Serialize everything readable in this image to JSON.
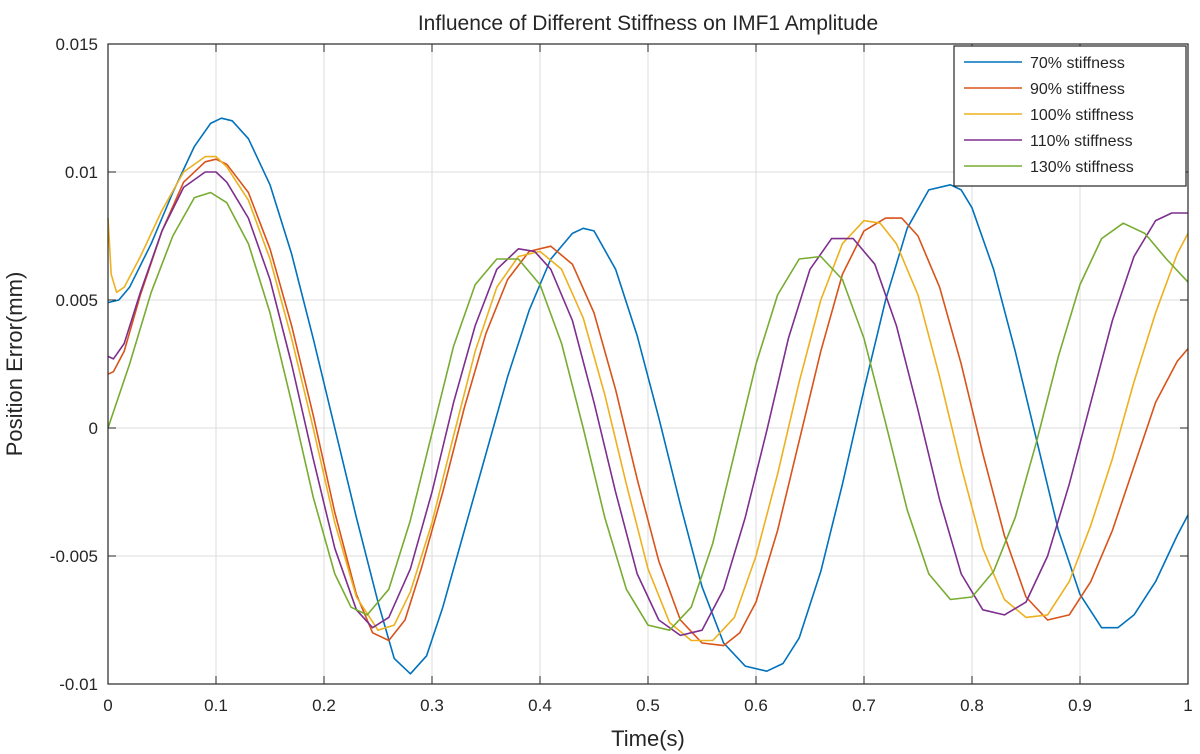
{
  "chart_data": {
    "type": "line",
    "title": "Influence of Different Stiffness on IMF1 Amplitude",
    "xlabel": "Time(s)",
    "ylabel": "Position Error(mm)",
    "xlim": [
      0,
      1
    ],
    "ylim": [
      -0.01,
      0.015
    ],
    "x_ticks": [
      0,
      0.1,
      0.2,
      0.3,
      0.4,
      0.5,
      0.6,
      0.7,
      0.8,
      0.9,
      1
    ],
    "x_tick_labels": [
      "0",
      "0.1",
      "0.2",
      "0.3",
      "0.4",
      "0.5",
      "0.6",
      "0.7",
      "0.8",
      "0.9",
      "1"
    ],
    "y_ticks": [
      -0.01,
      -0.005,
      0,
      0.005,
      0.01,
      0.015
    ],
    "y_tick_labels": [
      "-0.01",
      "-0.005",
      "0",
      "0.005",
      "0.01",
      "0.015"
    ],
    "grid": true,
    "legend_position": "top-right",
    "series": [
      {
        "name": "70% stiffness",
        "color": "#0072BD",
        "points": [
          [
            0,
            0.0049
          ],
          [
            0.01,
            0.005
          ],
          [
            0.02,
            0.0055
          ],
          [
            0.04,
            0.0072
          ],
          [
            0.06,
            0.0092
          ],
          [
            0.08,
            0.011
          ],
          [
            0.095,
            0.0119
          ],
          [
            0.105,
            0.0121
          ],
          [
            0.115,
            0.012
          ],
          [
            0.13,
            0.0113
          ],
          [
            0.15,
            0.0095
          ],
          [
            0.17,
            0.0068
          ],
          [
            0.19,
            0.0035
          ],
          [
            0.21,
            0.0
          ],
          [
            0.23,
            -0.0035
          ],
          [
            0.25,
            -0.0068
          ],
          [
            0.265,
            -0.009
          ],
          [
            0.28,
            -0.0096
          ],
          [
            0.295,
            -0.0089
          ],
          [
            0.31,
            -0.007
          ],
          [
            0.33,
            -0.004
          ],
          [
            0.35,
            -0.001
          ],
          [
            0.37,
            0.002
          ],
          [
            0.39,
            0.0046
          ],
          [
            0.41,
            0.0066
          ],
          [
            0.43,
            0.0076
          ],
          [
            0.44,
            0.0078
          ],
          [
            0.45,
            0.0077
          ],
          [
            0.47,
            0.0062
          ],
          [
            0.49,
            0.0036
          ],
          [
            0.51,
            0.0004
          ],
          [
            0.53,
            -0.003
          ],
          [
            0.55,
            -0.0062
          ],
          [
            0.57,
            -0.0084
          ],
          [
            0.59,
            -0.0093
          ],
          [
            0.61,
            -0.0095
          ],
          [
            0.625,
            -0.0092
          ],
          [
            0.64,
            -0.0082
          ],
          [
            0.66,
            -0.0056
          ],
          [
            0.68,
            -0.0022
          ],
          [
            0.7,
            0.0015
          ],
          [
            0.72,
            0.005
          ],
          [
            0.74,
            0.0078
          ],
          [
            0.76,
            0.0093
          ],
          [
            0.78,
            0.0095
          ],
          [
            0.79,
            0.0093
          ],
          [
            0.8,
            0.0086
          ],
          [
            0.82,
            0.0062
          ],
          [
            0.84,
            0.003
          ],
          [
            0.86,
            -0.0005
          ],
          [
            0.88,
            -0.004
          ],
          [
            0.9,
            -0.0065
          ],
          [
            0.92,
            -0.0078
          ],
          [
            0.935,
            -0.0078
          ],
          [
            0.95,
            -0.0073
          ],
          [
            0.97,
            -0.006
          ],
          [
            0.99,
            -0.0042
          ],
          [
            1.0,
            -0.0034
          ]
        ]
      },
      {
        "name": "90% stiffness",
        "color": "#D95319",
        "points": [
          [
            0,
            0.0021
          ],
          [
            0.005,
            0.0022
          ],
          [
            0.015,
            0.003
          ],
          [
            0.03,
            0.0052
          ],
          [
            0.05,
            0.0077
          ],
          [
            0.07,
            0.0096
          ],
          [
            0.09,
            0.0104
          ],
          [
            0.1,
            0.0105
          ],
          [
            0.11,
            0.0103
          ],
          [
            0.13,
            0.0092
          ],
          [
            0.15,
            0.007
          ],
          [
            0.17,
            0.004
          ],
          [
            0.19,
            0.0005
          ],
          [
            0.21,
            -0.0033
          ],
          [
            0.23,
            -0.0065
          ],
          [
            0.245,
            -0.008
          ],
          [
            0.26,
            -0.0083
          ],
          [
            0.275,
            -0.0075
          ],
          [
            0.29,
            -0.0055
          ],
          [
            0.31,
            -0.0025
          ],
          [
            0.33,
            0.0008
          ],
          [
            0.35,
            0.0037
          ],
          [
            0.37,
            0.0058
          ],
          [
            0.39,
            0.0069
          ],
          [
            0.41,
            0.0071
          ],
          [
            0.43,
            0.0064
          ],
          [
            0.45,
            0.0045
          ],
          [
            0.47,
            0.0015
          ],
          [
            0.49,
            -0.002
          ],
          [
            0.51,
            -0.0052
          ],
          [
            0.53,
            -0.0075
          ],
          [
            0.55,
            -0.0084
          ],
          [
            0.57,
            -0.0085
          ],
          [
            0.585,
            -0.008
          ],
          [
            0.6,
            -0.0068
          ],
          [
            0.62,
            -0.004
          ],
          [
            0.64,
            -0.0005
          ],
          [
            0.66,
            0.003
          ],
          [
            0.68,
            0.006
          ],
          [
            0.7,
            0.0077
          ],
          [
            0.72,
            0.0082
          ],
          [
            0.735,
            0.0082
          ],
          [
            0.75,
            0.0075
          ],
          [
            0.77,
            0.0055
          ],
          [
            0.79,
            0.0025
          ],
          [
            0.81,
            -0.001
          ],
          [
            0.83,
            -0.0042
          ],
          [
            0.85,
            -0.0066
          ],
          [
            0.87,
            -0.0075
          ],
          [
            0.89,
            -0.0073
          ],
          [
            0.91,
            -0.006
          ],
          [
            0.93,
            -0.004
          ],
          [
            0.95,
            -0.0015
          ],
          [
            0.97,
            0.001
          ],
          [
            0.99,
            0.0026
          ],
          [
            1.0,
            0.0031
          ]
        ]
      },
      {
        "name": "100% stiffness",
        "color": "#EDB120",
        "points": [
          [
            0,
            0.0082
          ],
          [
            0.003,
            0.006
          ],
          [
            0.008,
            0.0053
          ],
          [
            0.015,
            0.0055
          ],
          [
            0.03,
            0.0067
          ],
          [
            0.05,
            0.0085
          ],
          [
            0.07,
            0.01
          ],
          [
            0.09,
            0.0106
          ],
          [
            0.1,
            0.0106
          ],
          [
            0.11,
            0.0102
          ],
          [
            0.13,
            0.0089
          ],
          [
            0.15,
            0.0066
          ],
          [
            0.17,
            0.0035
          ],
          [
            0.19,
            0.0
          ],
          [
            0.21,
            -0.0037
          ],
          [
            0.23,
            -0.0066
          ],
          [
            0.25,
            -0.0079
          ],
          [
            0.265,
            -0.0077
          ],
          [
            0.28,
            -0.0064
          ],
          [
            0.3,
            -0.0037
          ],
          [
            0.32,
            -0.0003
          ],
          [
            0.34,
            0.003
          ],
          [
            0.36,
            0.0055
          ],
          [
            0.38,
            0.0067
          ],
          [
            0.4,
            0.0069
          ],
          [
            0.42,
            0.0062
          ],
          [
            0.44,
            0.0043
          ],
          [
            0.46,
            0.0013
          ],
          [
            0.48,
            -0.0022
          ],
          [
            0.5,
            -0.0055
          ],
          [
            0.52,
            -0.0076
          ],
          [
            0.54,
            -0.0083
          ],
          [
            0.56,
            -0.0083
          ],
          [
            0.58,
            -0.0074
          ],
          [
            0.6,
            -0.005
          ],
          [
            0.62,
            -0.0018
          ],
          [
            0.64,
            0.0018
          ],
          [
            0.66,
            0.005
          ],
          [
            0.68,
            0.0072
          ],
          [
            0.7,
            0.0081
          ],
          [
            0.715,
            0.008
          ],
          [
            0.73,
            0.0072
          ],
          [
            0.75,
            0.0052
          ],
          [
            0.77,
            0.002
          ],
          [
            0.79,
            -0.0015
          ],
          [
            0.81,
            -0.0047
          ],
          [
            0.83,
            -0.0067
          ],
          [
            0.85,
            -0.0074
          ],
          [
            0.87,
            -0.0073
          ],
          [
            0.89,
            -0.006
          ],
          [
            0.91,
            -0.0038
          ],
          [
            0.93,
            -0.0012
          ],
          [
            0.95,
            0.0018
          ],
          [
            0.97,
            0.0045
          ],
          [
            0.99,
            0.0068
          ],
          [
            1.0,
            0.0076
          ]
        ]
      },
      {
        "name": "110% stiffness",
        "color": "#7E2F8E",
        "points": [
          [
            0,
            0.0028
          ],
          [
            0.005,
            0.0027
          ],
          [
            0.015,
            0.0033
          ],
          [
            0.03,
            0.0053
          ],
          [
            0.05,
            0.0077
          ],
          [
            0.07,
            0.0094
          ],
          [
            0.09,
            0.01
          ],
          [
            0.1,
            0.01
          ],
          [
            0.11,
            0.0096
          ],
          [
            0.13,
            0.0082
          ],
          [
            0.15,
            0.0058
          ],
          [
            0.17,
            0.0025
          ],
          [
            0.19,
            -0.0012
          ],
          [
            0.21,
            -0.0047
          ],
          [
            0.23,
            -0.0071
          ],
          [
            0.245,
            -0.0078
          ],
          [
            0.26,
            -0.0074
          ],
          [
            0.28,
            -0.0055
          ],
          [
            0.3,
            -0.0025
          ],
          [
            0.32,
            0.001
          ],
          [
            0.34,
            0.004
          ],
          [
            0.36,
            0.0062
          ],
          [
            0.38,
            0.007
          ],
          [
            0.395,
            0.0069
          ],
          [
            0.41,
            0.0062
          ],
          [
            0.43,
            0.0042
          ],
          [
            0.45,
            0.001
          ],
          [
            0.47,
            -0.0025
          ],
          [
            0.49,
            -0.0057
          ],
          [
            0.51,
            -0.0075
          ],
          [
            0.53,
            -0.0081
          ],
          [
            0.55,
            -0.0079
          ],
          [
            0.57,
            -0.0063
          ],
          [
            0.59,
            -0.0035
          ],
          [
            0.61,
            -0.0001
          ],
          [
            0.63,
            0.0035
          ],
          [
            0.65,
            0.0062
          ],
          [
            0.67,
            0.0074
          ],
          [
            0.69,
            0.0074
          ],
          [
            0.71,
            0.0064
          ],
          [
            0.73,
            0.004
          ],
          [
            0.75,
            0.0007
          ],
          [
            0.77,
            -0.0028
          ],
          [
            0.79,
            -0.0057
          ],
          [
            0.81,
            -0.0071
          ],
          [
            0.83,
            -0.0073
          ],
          [
            0.85,
            -0.0068
          ],
          [
            0.87,
            -0.005
          ],
          [
            0.89,
            -0.0022
          ],
          [
            0.91,
            0.001
          ],
          [
            0.93,
            0.0042
          ],
          [
            0.95,
            0.0067
          ],
          [
            0.97,
            0.0081
          ],
          [
            0.985,
            0.0084
          ],
          [
            1.0,
            0.0084
          ]
        ]
      },
      {
        "name": "130% stiffness",
        "color": "#77AC30",
        "points": [
          [
            0,
            0.0
          ],
          [
            0.02,
            0.0025
          ],
          [
            0.04,
            0.0053
          ],
          [
            0.06,
            0.0075
          ],
          [
            0.08,
            0.009
          ],
          [
            0.095,
            0.0092
          ],
          [
            0.11,
            0.0088
          ],
          [
            0.13,
            0.0072
          ],
          [
            0.15,
            0.0045
          ],
          [
            0.17,
            0.001
          ],
          [
            0.19,
            -0.0027
          ],
          [
            0.21,
            -0.0057
          ],
          [
            0.225,
            -0.007
          ],
          [
            0.24,
            -0.0073
          ],
          [
            0.26,
            -0.0063
          ],
          [
            0.28,
            -0.0036
          ],
          [
            0.3,
            -0.0002
          ],
          [
            0.32,
            0.0032
          ],
          [
            0.34,
            0.0056
          ],
          [
            0.36,
            0.0066
          ],
          [
            0.38,
            0.0066
          ],
          [
            0.4,
            0.0056
          ],
          [
            0.42,
            0.0033
          ],
          [
            0.44,
            0.0
          ],
          [
            0.46,
            -0.0035
          ],
          [
            0.48,
            -0.0063
          ],
          [
            0.5,
            -0.0077
          ],
          [
            0.52,
            -0.0079
          ],
          [
            0.54,
            -0.007
          ],
          [
            0.56,
            -0.0045
          ],
          [
            0.58,
            -0.001
          ],
          [
            0.6,
            0.0025
          ],
          [
            0.62,
            0.0052
          ],
          [
            0.64,
            0.0066
          ],
          [
            0.66,
            0.0067
          ],
          [
            0.68,
            0.0058
          ],
          [
            0.7,
            0.0035
          ],
          [
            0.72,
            0.0002
          ],
          [
            0.74,
            -0.0032
          ],
          [
            0.76,
            -0.0057
          ],
          [
            0.78,
            -0.0067
          ],
          [
            0.8,
            -0.0066
          ],
          [
            0.82,
            -0.0056
          ],
          [
            0.84,
            -0.0035
          ],
          [
            0.86,
            -0.0005
          ],
          [
            0.88,
            0.0028
          ],
          [
            0.9,
            0.0056
          ],
          [
            0.92,
            0.0074
          ],
          [
            0.94,
            0.008
          ],
          [
            0.96,
            0.0076
          ],
          [
            0.98,
            0.0066
          ],
          [
            1.0,
            0.0057
          ]
        ]
      }
    ]
  }
}
